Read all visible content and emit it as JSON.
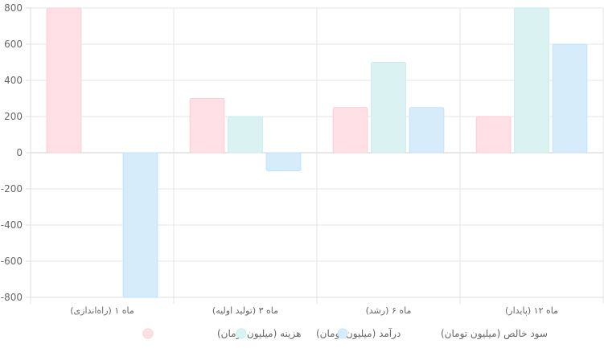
{
  "chart_data": {
    "type": "bar",
    "categories": [
      "ماه ۱ (راه‌اندازی)",
      "ماه ۳ (تولید اولیه)",
      "ماه ۶ (رشد)",
      "ماه ۱۲ (پایدار)"
    ],
    "series": [
      {
        "name": "هزینه (میلیون تومان)",
        "values": [
          800,
          300,
          250,
          200
        ],
        "color": "#ffe0e6",
        "stroke": "#ffccd6"
      },
      {
        "name": "درآمد (میلیون تومان)",
        "values": [
          0,
          200,
          500,
          800
        ],
        "color": "#dbf2f2",
        "stroke": "#c8ecec"
      },
      {
        "name": "سود خالص (میلیون تومان)",
        "values": [
          -800,
          -100,
          250,
          600
        ],
        "color": "#d7ecfb",
        "stroke": "#c2e2f8"
      }
    ],
    "ylim": [
      -800,
      800
    ],
    "yticks": [
      -800,
      -600,
      -400,
      -200,
      0,
      200,
      400,
      600,
      800
    ],
    "grid": true,
    "legend_position": "bottom",
    "title": "",
    "xlabel": "",
    "ylabel": ""
  }
}
